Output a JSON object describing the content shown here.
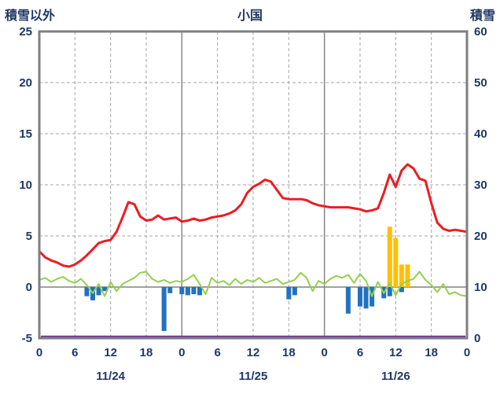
{
  "header": {
    "left_axis_title": "積雪以外",
    "title": "小国",
    "right_axis_title": "積雪"
  },
  "colors": {
    "text": "#1f3864",
    "frame": "#7f7f7f",
    "grid_dashed": "#a6a6a6",
    "grid_solid": "#808080",
    "red_line": "#ed1c24",
    "green_line": "#92d050",
    "blue_bars": "#2272c3",
    "yellow_bars": "#ffc000",
    "purple_line": "#7030a0"
  },
  "chart_data": {
    "type": "line",
    "title": "小国",
    "y_left": {
      "label": "積雪以外",
      "min": -5,
      "max": 25,
      "ticks": [
        25,
        20,
        15,
        10,
        5,
        0,
        -5
      ]
    },
    "y_right": {
      "label": "積雪",
      "min": 0,
      "max": 60,
      "ticks": [
        60,
        50,
        40,
        30,
        20,
        10,
        0
      ]
    },
    "x": {
      "hours_total": 72,
      "tick_step": 6,
      "tick_labels": [
        "0",
        "6",
        "12",
        "18",
        "0",
        "6",
        "12",
        "18",
        "0",
        "6",
        "12",
        "18",
        "0"
      ],
      "day_labels": [
        "11/24",
        "11/25",
        "11/26"
      ],
      "day_label_hours": [
        12,
        36,
        60
      ],
      "day_boundaries": [
        24,
        48
      ]
    },
    "series": [
      {
        "name": "line_red",
        "type": "line",
        "axis": "left",
        "color": "#ed1c24",
        "width": 3,
        "values": [
          3.5,
          2.9,
          2.6,
          2.4,
          2.1,
          2.0,
          2.2,
          2.6,
          3.1,
          3.7,
          4.3,
          4.5,
          4.6,
          5.4,
          6.8,
          8.3,
          8.1,
          6.9,
          6.5,
          6.6,
          7.0,
          6.6,
          6.7,
          6.8,
          6.4,
          6.5,
          6.7,
          6.5,
          6.6,
          6.8,
          6.9,
          7.0,
          7.2,
          7.5,
          8.1,
          9.2,
          9.8,
          10.1,
          10.5,
          10.3,
          9.5,
          8.7,
          8.6,
          8.6,
          8.6,
          8.5,
          8.2,
          8.0,
          7.9,
          7.8,
          7.8,
          7.8,
          7.8,
          7.7,
          7.6,
          7.4,
          7.5,
          7.7,
          9.2,
          11.0,
          9.8,
          11.4,
          12.0,
          11.6,
          10.6,
          10.4,
          8.2,
          6.3,
          5.7,
          5.5,
          5.6,
          5.5,
          5.4
        ]
      },
      {
        "name": "line_green",
        "type": "line",
        "axis": "left",
        "color": "#92d050",
        "width": 2,
        "values": [
          0.7,
          0.9,
          0.5,
          0.8,
          1.0,
          0.6,
          0.4,
          0.8,
          0.2,
          -0.6,
          0.3,
          -0.9,
          0.5,
          -0.4,
          0.3,
          0.6,
          0.9,
          1.4,
          1.5,
          0.8,
          0.5,
          0.7,
          0.4,
          0.6,
          0.5,
          0.8,
          1.2,
          0.3,
          -0.7,
          0.9,
          0.4,
          0.6,
          0.2,
          0.8,
          0.3,
          0.7,
          0.5,
          0.9,
          0.4,
          0.6,
          0.8,
          0.3,
          0.5,
          0.7,
          1.4,
          0.9,
          -0.4,
          0.6,
          0.3,
          0.8,
          1.1,
          0.9,
          1.2,
          0.4,
          1.3,
          0.6,
          -0.9,
          0.5,
          -0.6,
          0.4,
          -0.8,
          0.3,
          0.6,
          0.8,
          1.5,
          0.7,
          0.2,
          -0.5,
          0.3,
          -0.7,
          -0.5,
          -0.8,
          -0.9
        ]
      },
      {
        "name": "bars_blue",
        "type": "bar",
        "axis": "left",
        "color": "#2272c3",
        "points": [
          [
            8,
            -0.9
          ],
          [
            9,
            -1.3
          ],
          [
            10,
            -0.8
          ],
          [
            11,
            -0.4
          ],
          [
            21,
            -4.3
          ],
          [
            22,
            -0.6
          ],
          [
            24,
            -0.7
          ],
          [
            25,
            -0.8
          ],
          [
            26,
            -0.7
          ],
          [
            27,
            -0.8
          ],
          [
            42,
            -1.2
          ],
          [
            43,
            -0.8
          ],
          [
            52,
            -2.6
          ],
          [
            54,
            -1.9
          ],
          [
            55,
            -2.1
          ],
          [
            56,
            -1.9
          ],
          [
            58,
            -1.1
          ],
          [
            59,
            -0.9
          ],
          [
            61,
            -0.5
          ]
        ]
      },
      {
        "name": "bars_yellow",
        "type": "bar",
        "axis": "left",
        "color": "#ffc000",
        "points": [
          [
            59,
            5.9
          ],
          [
            60,
            4.8
          ],
          [
            61,
            2.2
          ],
          [
            62,
            2.2
          ]
        ]
      },
      {
        "name": "line_purple",
        "type": "constant-line",
        "axis": "right",
        "color": "#7030a0",
        "width": 2.5,
        "value": 0
      }
    ]
  }
}
